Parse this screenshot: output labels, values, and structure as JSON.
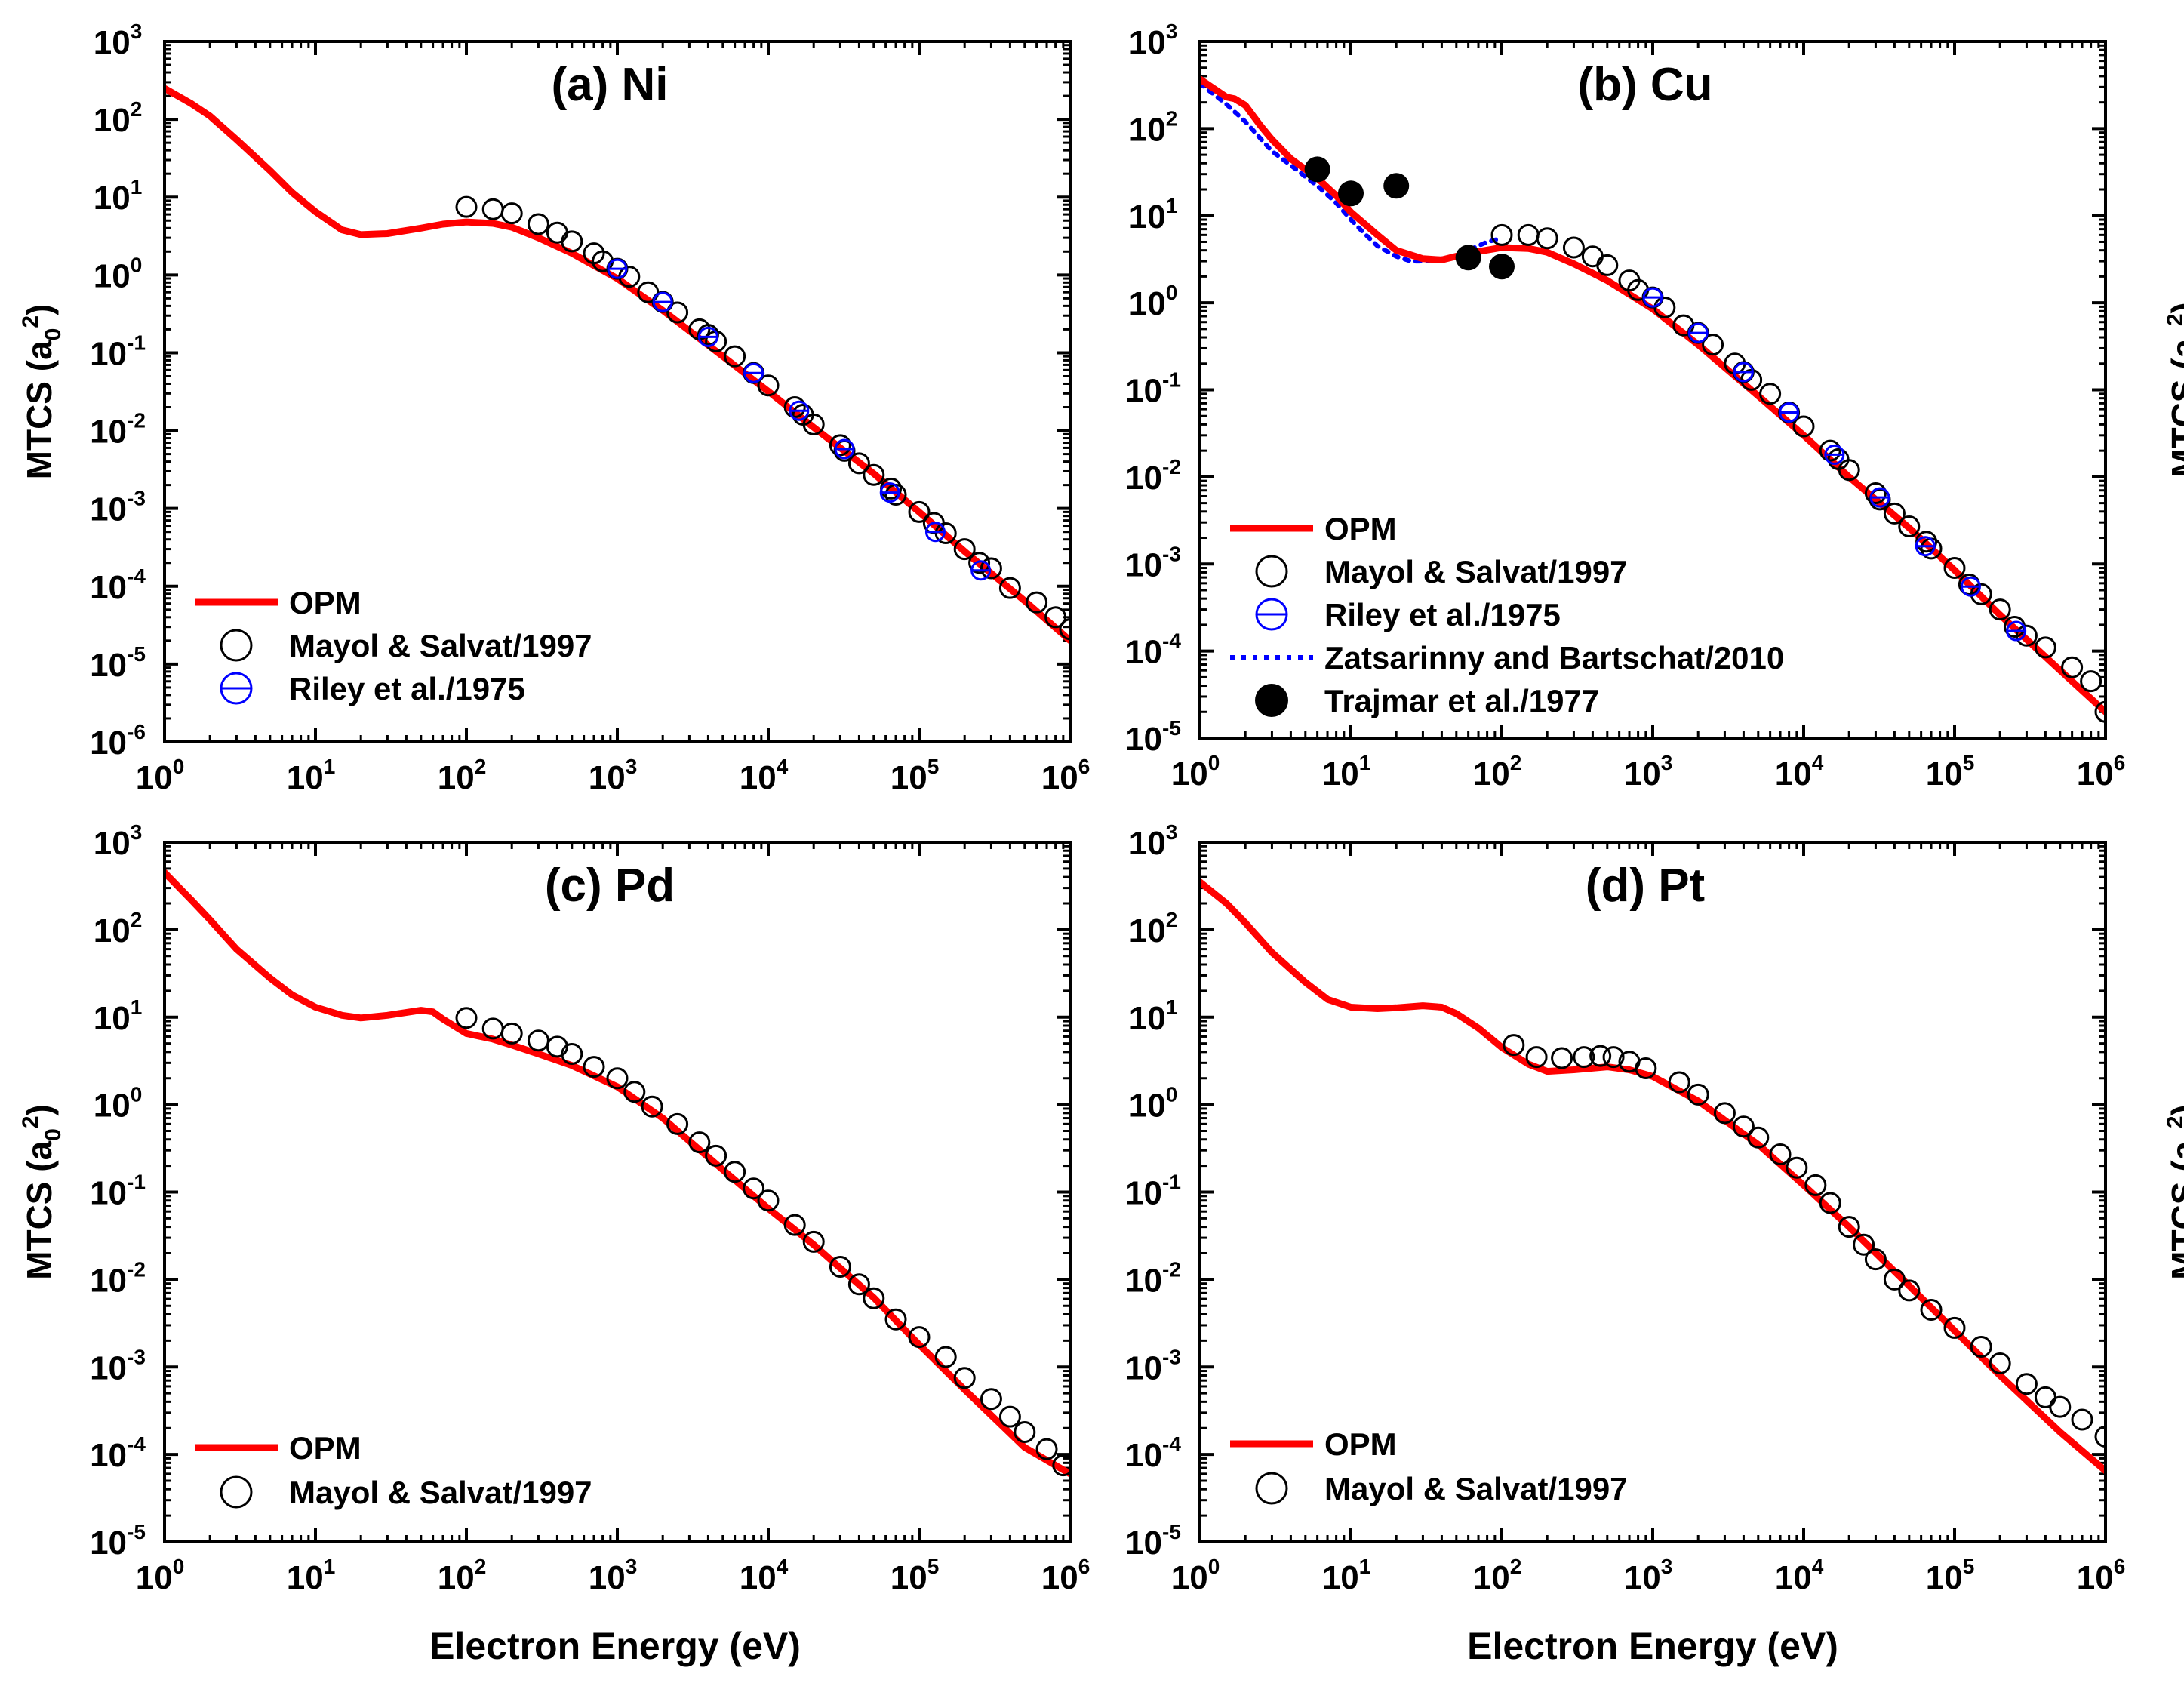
{
  "figure": {
    "xlabel": "Electron Energy (eV)",
    "ylabel_main": "MTCS (a",
    "ylabel_sub": "0",
    "ylabel_sup": "2",
    "ylabel_close": ")"
  },
  "styles": {
    "OPM": {
      "color": "#ff0000",
      "kind": "line"
    },
    "Mayol & Salvat/1997": {
      "color": "#000000",
      "kind": "open-circle"
    },
    "Riley et al./1975": {
      "color": "#0000ff",
      "kind": "barred-circle"
    },
    "Zatsarinny and Bartschat/2010": {
      "color": "#0000ff",
      "kind": "dotted-line"
    },
    "Trajmar et al./1977": {
      "color": "#000000",
      "kind": "filled-circle"
    }
  },
  "chart_data": [
    {
      "type": "line",
      "title": "(a) Ni",
      "xscale": "log",
      "yscale": "log",
      "xlim": [
        1,
        1000000
      ],
      "ylim": [
        1e-06,
        1000
      ],
      "ylabel_side": "left",
      "legend": [
        "OPM",
        "Mayol & Salvat/1997",
        "Riley et al./1975"
      ],
      "series": [
        {
          "name": "OPM",
          "x": [
            1,
            1.5,
            2,
            3,
            5,
            7,
            10,
            15,
            20,
            30,
            50,
            70,
            100,
            150,
            200,
            300,
            500,
            1000,
            2000,
            5000,
            10000,
            20000,
            50000,
            100000,
            200000,
            500000,
            1000000
          ],
          "y": [
            250,
            160,
            110,
            55,
            22,
            11.5,
            6.5,
            3.8,
            3.3,
            3.4,
            4.0,
            4.5,
            4.8,
            4.6,
            4.1,
            3.0,
            1.9,
            0.9,
            0.35,
            0.09,
            0.032,
            0.011,
            0.0028,
            0.0009,
            0.00028,
            6.5e-05,
            2e-05
          ]
        },
        {
          "name": "Mayol & Salvat/1997",
          "x": [
            100,
            150,
            200,
            300,
            400,
            500,
            700,
            800,
            1000,
            1200,
            1600,
            2000,
            2500,
            3500,
            4000,
            4500,
            6000,
            8000,
            10000,
            15000,
            17000,
            20000,
            30000,
            32000,
            40000,
            50000,
            65000,
            70000,
            100000,
            125000,
            150000,
            200000,
            250000,
            300000,
            400000,
            600000,
            800000,
            1000000
          ],
          "y": [
            7.5,
            7.0,
            6.2,
            4.5,
            3.5,
            2.7,
            1.9,
            1.5,
            1.2,
            0.95,
            0.6,
            0.45,
            0.33,
            0.2,
            0.17,
            0.14,
            0.09,
            0.055,
            0.038,
            0.02,
            0.016,
            0.012,
            0.0065,
            0.0055,
            0.0038,
            0.0027,
            0.0018,
            0.0015,
            0.0009,
            0.00065,
            0.00048,
            0.0003,
            0.0002,
            0.00017,
            9.5e-05,
            6.2e-05,
            4e-05,
            2.8e-05
          ]
        },
        {
          "name": "Riley et al./1975",
          "x": [
            1000,
            2000,
            4000,
            8000,
            16000,
            32000,
            64000,
            128000,
            256000
          ],
          "y": [
            1.2,
            0.45,
            0.16,
            0.055,
            0.018,
            0.0058,
            0.0016,
            0.0005,
            0.00016
          ]
        }
      ]
    },
    {
      "type": "line",
      "title": "(b) Cu",
      "xscale": "log",
      "yscale": "log",
      "xlim": [
        1,
        1000000
      ],
      "ylim": [
        1e-05,
        1000
      ],
      "ylabel_side": "right",
      "legend": [
        "OPM",
        "Mayol & Salvat/1997",
        "Riley et al./1975",
        "Zatsarinny and Bartschat/2010",
        "Trajmar et al./1977"
      ],
      "series": [
        {
          "name": "OPM",
          "x": [
            1,
            1.5,
            1.7,
            2,
            2.5,
            3,
            4,
            5,
            6,
            7,
            8,
            10,
            15,
            20,
            30,
            40,
            60,
            100,
            150,
            200,
            300,
            500,
            1000,
            2000,
            5000,
            10000,
            20000,
            50000,
            100000,
            200000,
            500000,
            1000000
          ],
          "y": [
            370,
            230,
            220,
            185,
            110,
            75,
            45,
            34,
            27,
            21,
            17,
            11,
            6,
            4,
            3.2,
            3.1,
            3.7,
            4.3,
            4.2,
            3.8,
            2.8,
            1.8,
            0.85,
            0.33,
            0.085,
            0.03,
            0.01,
            0.0026,
            0.00085,
            0.00026,
            6e-05,
            2e-05
          ]
        },
        {
          "name": "Zatsarinny and Bartschat/2010",
          "x": [
            1,
            1.5,
            2,
            3,
            4,
            5,
            6,
            8,
            10,
            12,
            15,
            20,
            25,
            30,
            40,
            50,
            60,
            80,
            100
          ],
          "y": [
            330,
            190,
            120,
            55,
            38,
            28,
            22,
            14,
            9,
            6.5,
            4.5,
            3.4,
            3.0,
            3.0,
            3.2,
            3.5,
            4.0,
            5.0,
            5.5
          ]
        },
        {
          "name": "Mayol & Salvat/1997",
          "x": [
            100,
            150,
            200,
            300,
            400,
            500,
            700,
            800,
            1000,
            1200,
            1600,
            2000,
            2500,
            3500,
            4000,
            4500,
            6000,
            8000,
            10000,
            15000,
            17000,
            20000,
            30000,
            32000,
            40000,
            50000,
            65000,
            70000,
            100000,
            125000,
            150000,
            200000,
            250000,
            300000,
            400000,
            600000,
            800000,
            1000000
          ],
          "y": [
            6.0,
            6.0,
            5.5,
            4.3,
            3.4,
            2.7,
            1.8,
            1.4,
            1.15,
            0.88,
            0.55,
            0.45,
            0.33,
            0.2,
            0.16,
            0.13,
            0.09,
            0.055,
            0.038,
            0.02,
            0.016,
            0.012,
            0.0065,
            0.0055,
            0.0038,
            0.0027,
            0.0018,
            0.0015,
            0.0009,
            0.00058,
            0.00045,
            0.0003,
            0.00019,
            0.00015,
            0.00011,
            6.5e-05,
            4.5e-05,
            2e-05
          ]
        },
        {
          "name": "Riley et al./1975",
          "x": [
            1000,
            2000,
            4000,
            8000,
            16000,
            32000,
            64000,
            128000,
            256000
          ],
          "y": [
            1.15,
            0.45,
            0.16,
            0.055,
            0.018,
            0.0058,
            0.0016,
            0.00055,
            0.00017
          ]
        },
        {
          "name": "Trajmar et al./1977",
          "x": [
            6,
            10,
            20,
            60,
            100
          ],
          "y": [
            34,
            18,
            22,
            3.3,
            2.6
          ]
        }
      ]
    },
    {
      "type": "line",
      "title": "(c) Pd",
      "xscale": "log",
      "yscale": "log",
      "xlim": [
        1,
        1000000
      ],
      "ylim": [
        1e-05,
        1000
      ],
      "ylabel_side": "left",
      "legend": [
        "OPM",
        "Mayol & Salvat/1997"
      ],
      "series": [
        {
          "name": "OPM",
          "x": [
            1,
            1.5,
            2,
            3,
            5,
            7,
            10,
            15,
            20,
            30,
            50,
            60,
            70,
            100,
            150,
            200,
            300,
            500,
            1000,
            2000,
            5000,
            10000,
            20000,
            50000,
            100000,
            200000,
            500000,
            1000000
          ],
          "y": [
            450,
            220,
            130,
            60,
            28,
            18,
            13,
            10.5,
            9.8,
            10.5,
            12,
            11.5,
            9.5,
            6.5,
            5.6,
            4.8,
            3.8,
            2.8,
            1.6,
            0.7,
            0.18,
            0.065,
            0.025,
            0.0062,
            0.0018,
            0.00055,
            0.00012,
            6e-05
          ]
        },
        {
          "name": "Mayol & Salvat/1997",
          "x": [
            100,
            150,
            200,
            300,
            400,
            500,
            700,
            1000,
            1300,
            1700,
            2500,
            3500,
            4500,
            6000,
            8000,
            10000,
            15000,
            20000,
            30000,
            40000,
            50000,
            70000,
            100000,
            150000,
            200000,
            300000,
            400000,
            500000,
            700000,
            900000
          ],
          "y": [
            9.8,
            7.4,
            6.5,
            5.4,
            4.6,
            3.8,
            2.7,
            2.0,
            1.4,
            0.95,
            0.6,
            0.37,
            0.26,
            0.17,
            0.11,
            0.08,
            0.042,
            0.027,
            0.014,
            0.0088,
            0.0061,
            0.0035,
            0.0022,
            0.0013,
            0.00075,
            0.00043,
            0.00027,
            0.00018,
            0.000115,
            7.5e-05
          ]
        }
      ]
    },
    {
      "type": "line",
      "title": "(d) Pt",
      "xscale": "log",
      "yscale": "log",
      "xlim": [
        1,
        1000000
      ],
      "ylim": [
        1e-05,
        1000
      ],
      "ylabel_side": "right",
      "legend": [
        "OPM",
        "Mayol & Salvat/1997"
      ],
      "series": [
        {
          "name": "OPM",
          "x": [
            1,
            1.5,
            2,
            3,
            5,
            7,
            10,
            15,
            20,
            30,
            40,
            50,
            70,
            100,
            150,
            200,
            300,
            500,
            700,
            1000,
            2000,
            5000,
            10000,
            20000,
            50000,
            100000,
            200000,
            500000,
            1000000
          ],
          "y": [
            350,
            200,
            120,
            55,
            25,
            16,
            13,
            12.5,
            12.8,
            13.5,
            13,
            11,
            7.5,
            4.5,
            2.9,
            2.4,
            2.5,
            2.7,
            2.5,
            2.1,
            1.1,
            0.35,
            0.12,
            0.04,
            0.0085,
            0.0026,
            0.0008,
            0.00018,
            6.5e-05
          ]
        },
        {
          "name": "Mayol & Salvat/1997",
          "x": [
            120,
            170,
            250,
            350,
            450,
            550,
            700,
            900,
            1500,
            2000,
            3000,
            4000,
            5000,
            7000,
            9000,
            12000,
            15000,
            20000,
            25000,
            30000,
            40000,
            50000,
            70000,
            100000,
            150000,
            200000,
            300000,
            400000,
            500000,
            700000,
            1000000
          ],
          "y": [
            4.8,
            3.5,
            3.4,
            3.5,
            3.6,
            3.5,
            3.1,
            2.6,
            1.8,
            1.3,
            0.8,
            0.56,
            0.42,
            0.27,
            0.19,
            0.12,
            0.075,
            0.04,
            0.025,
            0.017,
            0.01,
            0.0075,
            0.0045,
            0.0028,
            0.0017,
            0.0011,
            0.00064,
            0.00045,
            0.00035,
            0.00025,
            0.00016
          ]
        }
      ]
    }
  ]
}
